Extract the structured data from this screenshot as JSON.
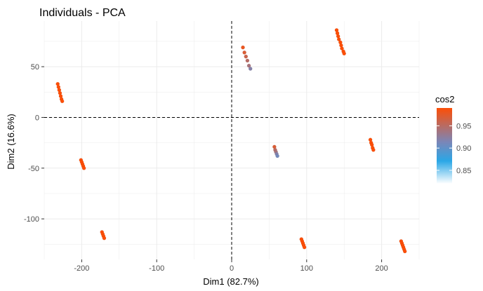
{
  "chart_data": {
    "type": "scatter",
    "title": "Individuals - PCA",
    "xlabel": "Dim1 (82.7%)",
    "ylabel": "Dim2 (16.6%)",
    "xlim": [
      -250,
      250
    ],
    "ylim": [
      -140,
      95
    ],
    "xticks": [
      -200,
      -100,
      0,
      100,
      200
    ],
    "yticks": [
      -100,
      -50,
      0,
      50
    ],
    "xtick_labels": [
      "-200",
      "-100",
      "0",
      "100",
      "200"
    ],
    "ytick_labels": [
      "-100",
      "-50",
      "0",
      "50"
    ],
    "grid": true,
    "reference_lines": {
      "x": 0,
      "y": 0,
      "style": "dashed"
    },
    "legend": {
      "title": "cos2",
      "placement": "right",
      "range": [
        0.82,
        0.99
      ],
      "ticks": [
        0.85,
        0.9,
        0.95
      ],
      "tick_labels": [
        "0.85",
        "0.90",
        "0.95"
      ],
      "colors": [
        "#ffffff",
        "#00afbb",
        "#e7b800",
        "#fc4e07"
      ]
    },
    "points": [
      {
        "x": -232,
        "y": 33,
        "cos2": 0.99
      },
      {
        "x": -231,
        "y": 30,
        "cos2": 0.99
      },
      {
        "x": -230,
        "y": 27,
        "cos2": 0.99
      },
      {
        "x": -229,
        "y": 24,
        "cos2": 0.99
      },
      {
        "x": -228,
        "y": 21,
        "cos2": 0.99
      },
      {
        "x": -227,
        "y": 18,
        "cos2": 0.99
      },
      {
        "x": -226,
        "y": 16,
        "cos2": 0.99
      },
      {
        "x": -201,
        "y": -42,
        "cos2": 0.99
      },
      {
        "x": -200,
        "y": -44,
        "cos2": 0.99
      },
      {
        "x": -199,
        "y": -46,
        "cos2": 0.99
      },
      {
        "x": -198,
        "y": -48,
        "cos2": 0.99
      },
      {
        "x": -197,
        "y": -50,
        "cos2": 0.99
      },
      {
        "x": -173,
        "y": -113,
        "cos2": 0.99
      },
      {
        "x": -172,
        "y": -115,
        "cos2": 0.99
      },
      {
        "x": -171,
        "y": -117,
        "cos2": 0.99
      },
      {
        "x": -170,
        "y": -119,
        "cos2": 0.99
      },
      {
        "x": 15,
        "y": 69,
        "cos2": 0.98
      },
      {
        "x": 17,
        "y": 64,
        "cos2": 0.97
      },
      {
        "x": 19,
        "y": 60,
        "cos2": 0.96
      },
      {
        "x": 21,
        "y": 56,
        "cos2": 0.95
      },
      {
        "x": 23,
        "y": 51,
        "cos2": 0.94
      },
      {
        "x": 25,
        "y": 48,
        "cos2": 0.92
      },
      {
        "x": 57,
        "y": -29,
        "cos2": 0.97
      },
      {
        "x": 58,
        "y": -32,
        "cos2": 0.95
      },
      {
        "x": 59,
        "y": -34,
        "cos2": 0.94
      },
      {
        "x": 60,
        "y": -36,
        "cos2": 0.92
      },
      {
        "x": 61,
        "y": -38,
        "cos2": 0.91
      },
      {
        "x": 93,
        "y": -120,
        "cos2": 0.99
      },
      {
        "x": 94,
        "y": -122,
        "cos2": 0.99
      },
      {
        "x": 95,
        "y": -124,
        "cos2": 0.99
      },
      {
        "x": 96,
        "y": -126,
        "cos2": 0.99
      },
      {
        "x": 97,
        "y": -128,
        "cos2": 0.99
      },
      {
        "x": 140,
        "y": 86,
        "cos2": 0.99
      },
      {
        "x": 141,
        "y": 83,
        "cos2": 0.99
      },
      {
        "x": 142,
        "y": 80,
        "cos2": 0.99
      },
      {
        "x": 143,
        "y": 77,
        "cos2": 0.99
      },
      {
        "x": 145,
        "y": 74,
        "cos2": 0.99
      },
      {
        "x": 146,
        "y": 71,
        "cos2": 0.99
      },
      {
        "x": 147,
        "y": 68,
        "cos2": 0.99
      },
      {
        "x": 149,
        "y": 65,
        "cos2": 0.99
      },
      {
        "x": 150,
        "y": 63,
        "cos2": 0.99
      },
      {
        "x": 185,
        "y": -22,
        "cos2": 0.99
      },
      {
        "x": 186,
        "y": -25,
        "cos2": 0.99
      },
      {
        "x": 187,
        "y": -27,
        "cos2": 0.99
      },
      {
        "x": 188,
        "y": -30,
        "cos2": 0.99
      },
      {
        "x": 189,
        "y": -32,
        "cos2": 0.99
      },
      {
        "x": 226,
        "y": -122,
        "cos2": 0.99
      },
      {
        "x": 227,
        "y": -124,
        "cos2": 0.99
      },
      {
        "x": 228,
        "y": -126,
        "cos2": 0.99
      },
      {
        "x": 229,
        "y": -128,
        "cos2": 0.99
      },
      {
        "x": 230,
        "y": -130,
        "cos2": 0.99
      },
      {
        "x": 231,
        "y": -132,
        "cos2": 0.99
      }
    ]
  }
}
